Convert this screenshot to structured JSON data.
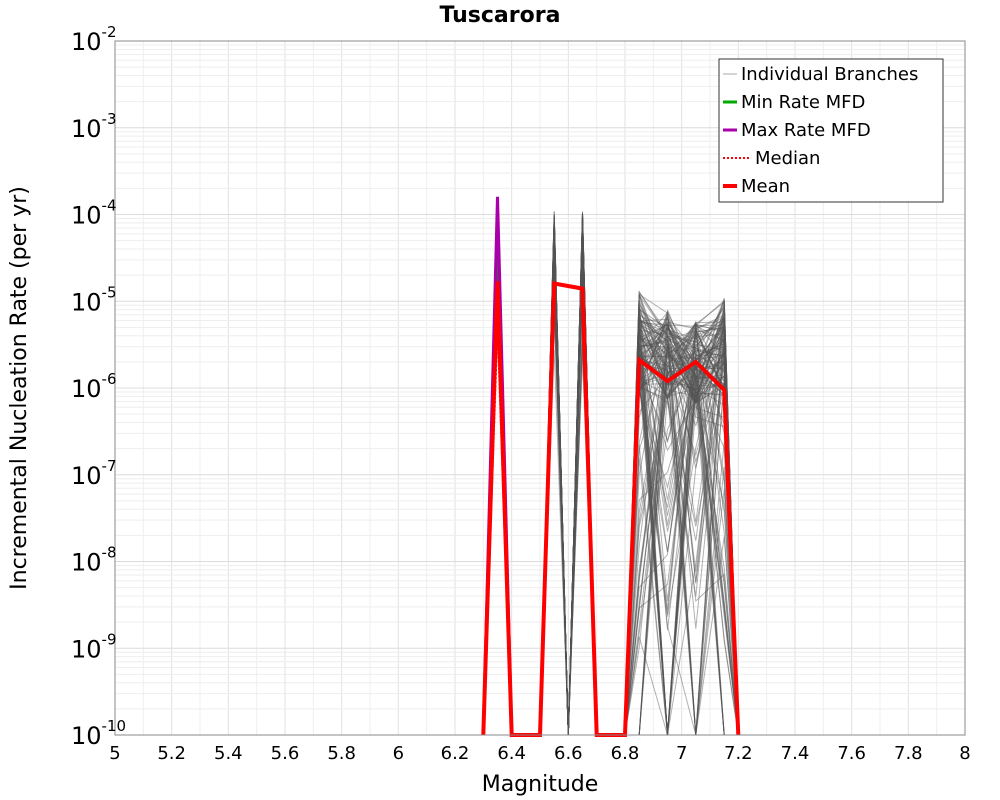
{
  "chart_data": {
    "type": "line",
    "title": "Tuscarora",
    "xlabel": "Magnitude",
    "ylabel": "Incremental Nucleation Rate (per yr)",
    "xlim": [
      5,
      8
    ],
    "ylim_log10": [
      -10,
      -2
    ],
    "y_scale": "log",
    "grid": true,
    "legend_position": "top-right",
    "x_ticks": [
      "5",
      "5.2",
      "5.4",
      "5.6",
      "5.8",
      "6",
      "6.2",
      "6.4",
      "6.6",
      "6.8",
      "7",
      "7.2",
      "7.4",
      "7.6",
      "7.8",
      "8"
    ],
    "y_ticks": [
      {
        "base": "10",
        "exp": "-2"
      },
      {
        "base": "10",
        "exp": "-3"
      },
      {
        "base": "10",
        "exp": "-4"
      },
      {
        "base": "10",
        "exp": "-5"
      },
      {
        "base": "10",
        "exp": "-6"
      },
      {
        "base": "10",
        "exp": "-7"
      },
      {
        "base": "10",
        "exp": "-8"
      },
      {
        "base": "10",
        "exp": "-9"
      },
      {
        "base": "10",
        "exp": "-10"
      }
    ],
    "legend": [
      {
        "label": "Individual Branches",
        "color": "#aaaaaa",
        "style": "thin"
      },
      {
        "label": "Min Rate MFD",
        "color": "#00aa00",
        "style": "solid"
      },
      {
        "label": "Max Rate MFD",
        "color": "#aa00aa",
        "style": "solid"
      },
      {
        "label": "Median",
        "color": "#ff0000",
        "style": "dotted"
      },
      {
        "label": "Mean",
        "color": "#ff0000",
        "style": "thick"
      }
    ],
    "series": [
      {
        "name": "Max Rate MFD",
        "color": "#aa00aa",
        "points": [
          [
            6.3,
            1e-10
          ],
          [
            6.35,
            0.00016
          ],
          [
            6.4,
            1e-10
          ]
        ]
      },
      {
        "name": "Mean",
        "color": "#ff0000",
        "points": [
          [
            6.3,
            1e-10
          ],
          [
            6.35,
            1.7e-05
          ],
          [
            6.4,
            1e-10
          ],
          [
            6.5,
            1e-10
          ],
          [
            6.55,
            1.6e-05
          ],
          [
            6.65,
            1.4e-05
          ],
          [
            6.7,
            1e-10
          ],
          [
            6.8,
            1e-10
          ],
          [
            6.85,
            2.1e-06
          ],
          [
            6.95,
            1.2e-06
          ],
          [
            7.05,
            2e-06
          ],
          [
            7.15,
            9.5e-07
          ],
          [
            7.2,
            1e-10
          ]
        ]
      },
      {
        "name": "Median",
        "color": "#ff0000",
        "points": [
          [
            6.3,
            1e-10
          ],
          [
            6.35,
            5e-06
          ],
          [
            6.4,
            1e-10
          ],
          [
            6.5,
            1e-10
          ],
          [
            6.55,
            1.6e-05
          ],
          [
            6.65,
            1.4e-05
          ],
          [
            6.7,
            1e-10
          ],
          [
            6.8,
            1e-10
          ],
          [
            6.85,
            2.1e-06
          ],
          [
            6.95,
            1.2e-06
          ],
          [
            7.05,
            2e-06
          ],
          [
            7.15,
            9.5e-07
          ],
          [
            7.2,
            1e-10
          ]
        ]
      }
    ],
    "branch_envelope": {
      "peaks": [
        {
          "x": 6.35,
          "ymin": 2e-06,
          "ymax": 0.00016
        },
        {
          "x": 6.55,
          "ymin": 1e-10,
          "ymax": 0.00011
        },
        {
          "x": 6.65,
          "ymin": 1e-10,
          "ymax": 0.00011
        },
        {
          "x": 6.85,
          "ymin": 1e-10,
          "ymax": 1.3e-05
        },
        {
          "x": 6.95,
          "ymin": 1e-10,
          "ymax": 8e-06
        },
        {
          "x": 7.05,
          "ymin": 1e-10,
          "ymax": 6e-06
        },
        {
          "x": 7.15,
          "ymin": 1e-10,
          "ymax": 1.1e-05
        }
      ]
    }
  }
}
